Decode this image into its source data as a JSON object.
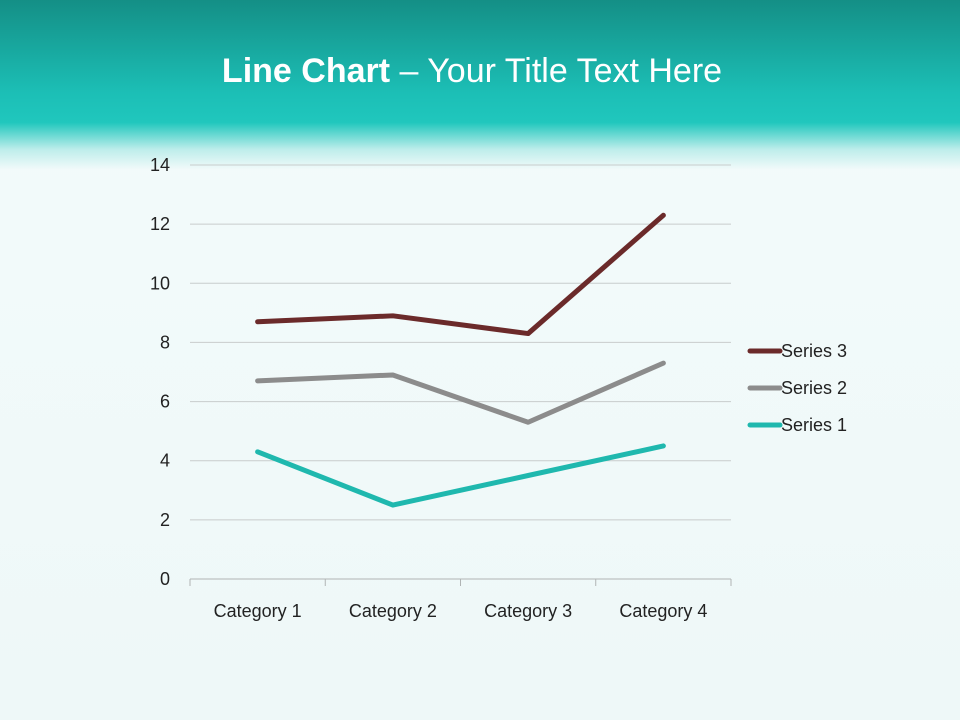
{
  "slide": {
    "title_bold": "Line Chart",
    "title_rest": " – Your Title Text Here"
  },
  "chart_data": {
    "type": "line",
    "stacked": true,
    "categories": [
      "Category 1",
      "Category 2",
      "Category 3",
      "Category 4"
    ],
    "series": [
      {
        "name": "Series 1",
        "values": [
          4.3,
          2.5,
          3.5,
          4.5
        ],
        "color": "#1fb8ae"
      },
      {
        "name": "Series 2",
        "values": [
          2.4,
          4.4,
          1.8,
          2.8
        ],
        "color": "#8c8c8c"
      },
      {
        "name": "Series 3",
        "values": [
          2,
          2,
          3,
          5
        ],
        "color": "#6b2a2a"
      }
    ],
    "ylim": [
      0,
      14
    ],
    "yticks": [
      "0",
      "2",
      "4",
      "6",
      "8",
      "10",
      "12",
      "14"
    ],
    "grid": true,
    "legend": "right"
  }
}
